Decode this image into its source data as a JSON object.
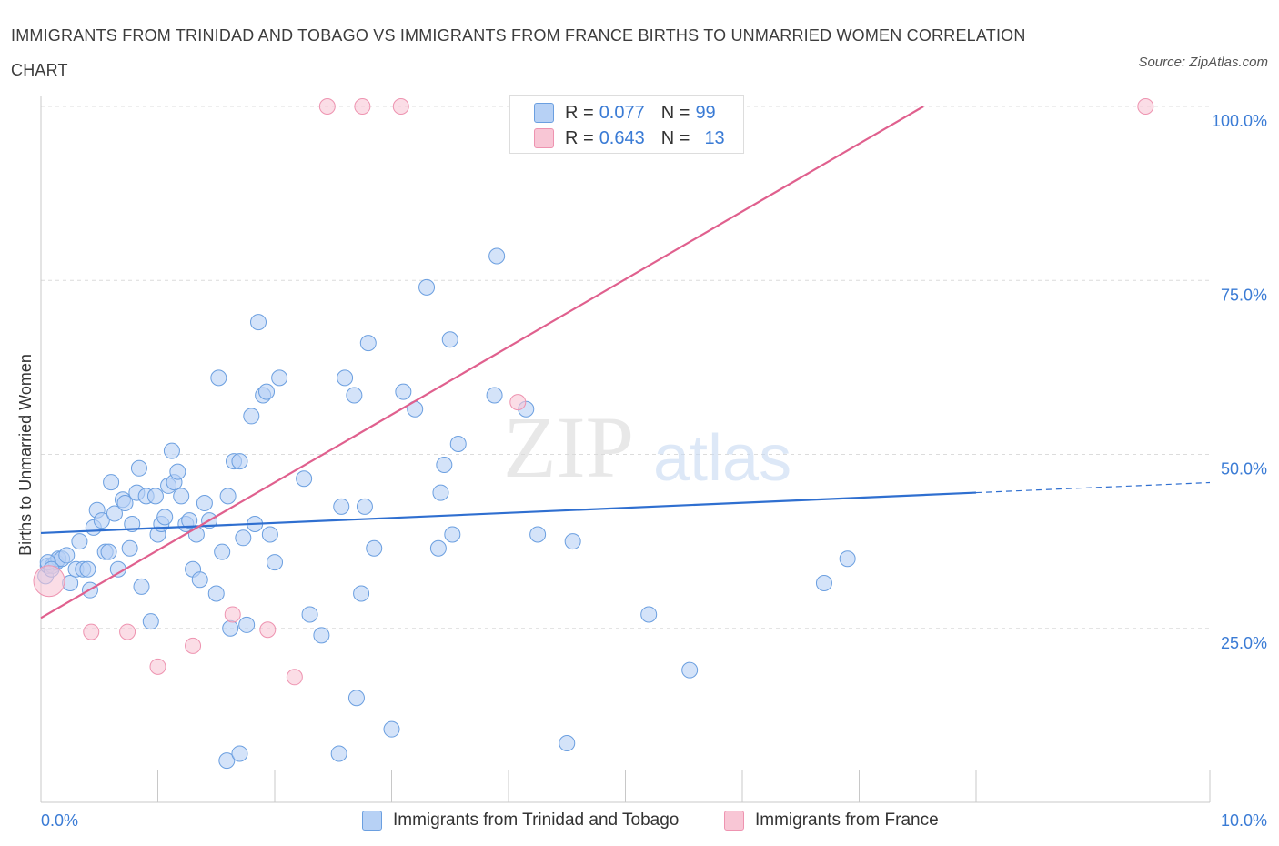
{
  "header": {
    "title": "IMMIGRANTS FROM TRINIDAD AND TOBAGO VS IMMIGRANTS FROM FRANCE BIRTHS TO UNMARRIED WOMEN CORRELATION CHART",
    "source": "Source: ZipAtlas.com"
  },
  "watermark": {
    "zip": "ZIP",
    "atlas": "atlas"
  },
  "colors": {
    "blue_fill": "#b7d1f5",
    "blue_stroke": "#6b9fe0",
    "blue_line": "#2f6fd0",
    "pink_fill": "#f8c6d5",
    "pink_stroke": "#ee93b0",
    "pink_line": "#e0608e",
    "tick_text": "#3a7bd5",
    "grid": "#dcdcdc"
  },
  "legend": {
    "rows": [
      {
        "r_label": "R =",
        "r_value": "0.077",
        "n_label": "N =",
        "n_value": "99"
      },
      {
        "r_label": "R =",
        "r_value": "0.643",
        "n_label": "N =",
        "n_value": "13"
      }
    ]
  },
  "bottom_legend": {
    "series1": "Immigrants from Trinidad and Tobago",
    "series2": "Immigrants from France"
  },
  "chart_data": {
    "type": "scatter",
    "title": "IMMIGRANTS FROM TRINIDAD AND TOBAGO VS IMMIGRANTS FROM FRANCE BIRTHS TO UNMARRIED WOMEN CORRELATION CHART",
    "xlabel": "",
    "ylabel": "Births to Unmarried Women",
    "xlim": [
      0,
      10
    ],
    "ylim": [
      0,
      100
    ],
    "x_tick_labels": [
      "0.0%",
      "10.0%"
    ],
    "y_tick_labels": [
      "100.0%",
      "75.0%",
      "50.0%",
      "25.0%"
    ],
    "y_ticks": [
      100,
      75,
      50,
      25
    ],
    "grid": true,
    "legend_position": "top-center",
    "series": [
      {
        "name": "Immigrants from Trinidad and Tobago",
        "R": 0.077,
        "N": 99,
        "trend": {
          "x": [
            0,
            8.0
          ],
          "y": [
            38.7,
            44.5
          ],
          "dashed_extension_to_x": 10
        },
        "points": [
          [
            0.04,
            32.5
          ],
          [
            0.06,
            34
          ],
          [
            0.1,
            34
          ],
          [
            0.13,
            34.5
          ],
          [
            0.15,
            35
          ],
          [
            0.18,
            35
          ],
          [
            0.22,
            35.5
          ],
          [
            0.25,
            31.5
          ],
          [
            0.3,
            33.5
          ],
          [
            0.33,
            37.5
          ],
          [
            0.36,
            33.5
          ],
          [
            0.4,
            33.5
          ],
          [
            0.42,
            30.5
          ],
          [
            0.45,
            39.5
          ],
          [
            0.48,
            42
          ],
          [
            0.52,
            40.5
          ],
          [
            0.55,
            36
          ],
          [
            0.58,
            36
          ],
          [
            0.6,
            46
          ],
          [
            0.63,
            41.5
          ],
          [
            0.66,
            33.5
          ],
          [
            0.7,
            43.5
          ],
          [
            0.72,
            43
          ],
          [
            0.76,
            36.5
          ],
          [
            0.78,
            40
          ],
          [
            0.82,
            44.5
          ],
          [
            0.84,
            48
          ],
          [
            0.86,
            31
          ],
          [
            0.9,
            44
          ],
          [
            0.94,
            26
          ],
          [
            0.98,
            44
          ],
          [
            1.0,
            38.5
          ],
          [
            1.03,
            40
          ],
          [
            1.06,
            41
          ],
          [
            1.09,
            45.5
          ],
          [
            1.12,
            50.5
          ],
          [
            1.14,
            46
          ],
          [
            1.17,
            47.5
          ],
          [
            1.2,
            44
          ],
          [
            1.24,
            40
          ],
          [
            1.27,
            40.5
          ],
          [
            1.3,
            33.5
          ],
          [
            1.33,
            38.5
          ],
          [
            1.36,
            32
          ],
          [
            1.4,
            43
          ],
          [
            1.44,
            40.5
          ],
          [
            1.5,
            30
          ],
          [
            1.52,
            61
          ],
          [
            1.55,
            36
          ],
          [
            1.6,
            44
          ],
          [
            1.62,
            25
          ],
          [
            1.65,
            49
          ],
          [
            1.7,
            49
          ],
          [
            1.73,
            38
          ],
          [
            1.76,
            25.5
          ],
          [
            1.8,
            55.5
          ],
          [
            1.83,
            40
          ],
          [
            1.86,
            69
          ],
          [
            1.9,
            58.5
          ],
          [
            1.93,
            59
          ],
          [
            1.96,
            38.5
          ],
          [
            2.0,
            34.5
          ],
          [
            2.04,
            61
          ],
          [
            2.25,
            46.5
          ],
          [
            2.3,
            27
          ],
          [
            2.4,
            24
          ],
          [
            2.57,
            42.5
          ],
          [
            2.6,
            61
          ],
          [
            2.68,
            58.5
          ],
          [
            2.7,
            15
          ],
          [
            2.74,
            30
          ],
          [
            2.77,
            42.5
          ],
          [
            2.8,
            66
          ],
          [
            2.85,
            36.5
          ],
          [
            3.0,
            10.5
          ],
          [
            3.1,
            59
          ],
          [
            3.2,
            56.5
          ],
          [
            3.3,
            74
          ],
          [
            3.4,
            36.5
          ],
          [
            3.42,
            44.5
          ],
          [
            3.45,
            48.5
          ],
          [
            3.5,
            66.5
          ],
          [
            3.52,
            38.5
          ],
          [
            3.57,
            51.5
          ],
          [
            3.88,
            58.5
          ],
          [
            3.9,
            78.5
          ],
          [
            4.15,
            56.5
          ],
          [
            4.25,
            38.5
          ],
          [
            4.5,
            8.5
          ],
          [
            4.55,
            37.5
          ],
          [
            5.2,
            27
          ],
          [
            5.55,
            19
          ],
          [
            6.7,
            31.5
          ],
          [
            6.9,
            35
          ],
          [
            1.59,
            6
          ],
          [
            1.7,
            7
          ],
          [
            2.55,
            7
          ],
          [
            0.06,
            34.5
          ],
          [
            0.09,
            33.5
          ]
        ]
      },
      {
        "name": "Immigrants from France",
        "R": 0.643,
        "N": 13,
        "trend": {
          "x": [
            0,
            7.55
          ],
          "y": [
            26.5,
            100
          ]
        },
        "points": [
          [
            0.07,
            31.8
          ],
          [
            0.43,
            24.5
          ],
          [
            0.74,
            24.5
          ],
          [
            1.0,
            19.5
          ],
          [
            1.3,
            22.5
          ],
          [
            1.64,
            27
          ],
          [
            1.94,
            24.8
          ],
          [
            2.17,
            18
          ],
          [
            2.45,
            100
          ],
          [
            2.75,
            100
          ],
          [
            3.08,
            100
          ],
          [
            4.08,
            57.5
          ],
          [
            9.45,
            100
          ]
        ]
      }
    ]
  }
}
